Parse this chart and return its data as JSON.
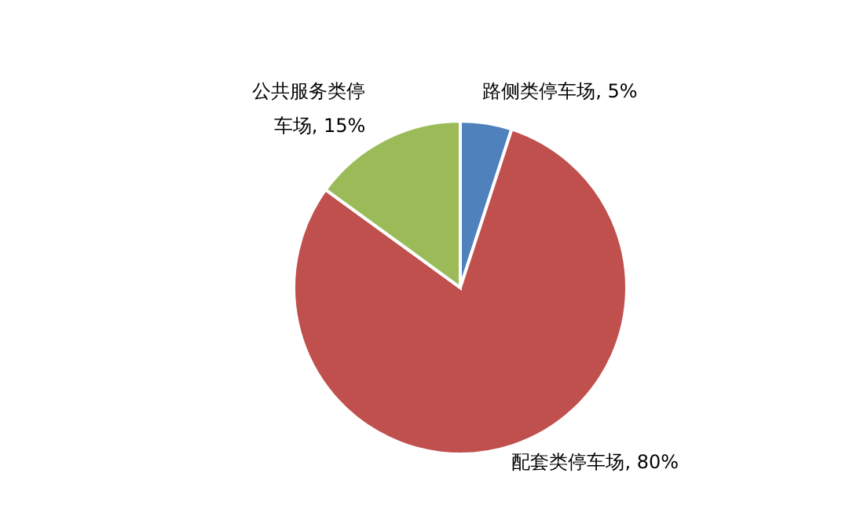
{
  "chart_data": {
    "type": "pie",
    "categories": [
      "路侧类停车场",
      "配套类停车场",
      "公共服务类停车场"
    ],
    "values": [
      5,
      80,
      15
    ],
    "colors": [
      "#4f81bd",
      "#c0504d",
      "#9bbb59"
    ],
    "value_labels": [
      "5%",
      "80%",
      "15%"
    ],
    "legend": false
  }
}
